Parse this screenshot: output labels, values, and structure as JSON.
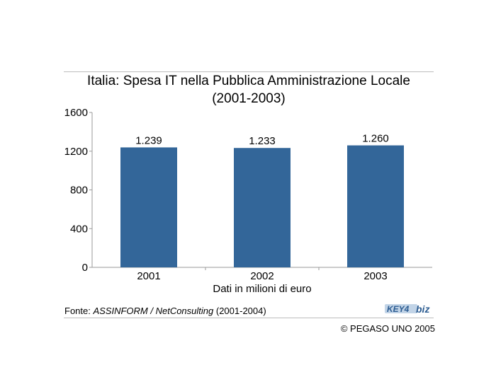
{
  "title_line1": "Italia: Spesa IT nella Pubblica Amministrazione Locale",
  "title_line2": "(2001-2003)",
  "source": {
    "prefix": "Fonte: ",
    "name": "ASSINFORM / NetConsulting",
    "suffix": " (2001-2004)"
  },
  "copyright": "© PEGASO UNO 2005",
  "logo_text": "KEY4biz",
  "chart_data": {
    "type": "bar",
    "categories": [
      "2001",
      "2002",
      "2003"
    ],
    "values": [
      1239,
      1233,
      1260
    ],
    "data_labels": [
      "1.239",
      "1.233",
      "1.260"
    ],
    "xlabel": "Dati in milioni di euro",
    "ylabel": "",
    "ylim": [
      0,
      1600
    ],
    "yticks": [
      0,
      400,
      800,
      1200,
      1600
    ],
    "grid": false,
    "bar_color": "#336699"
  }
}
